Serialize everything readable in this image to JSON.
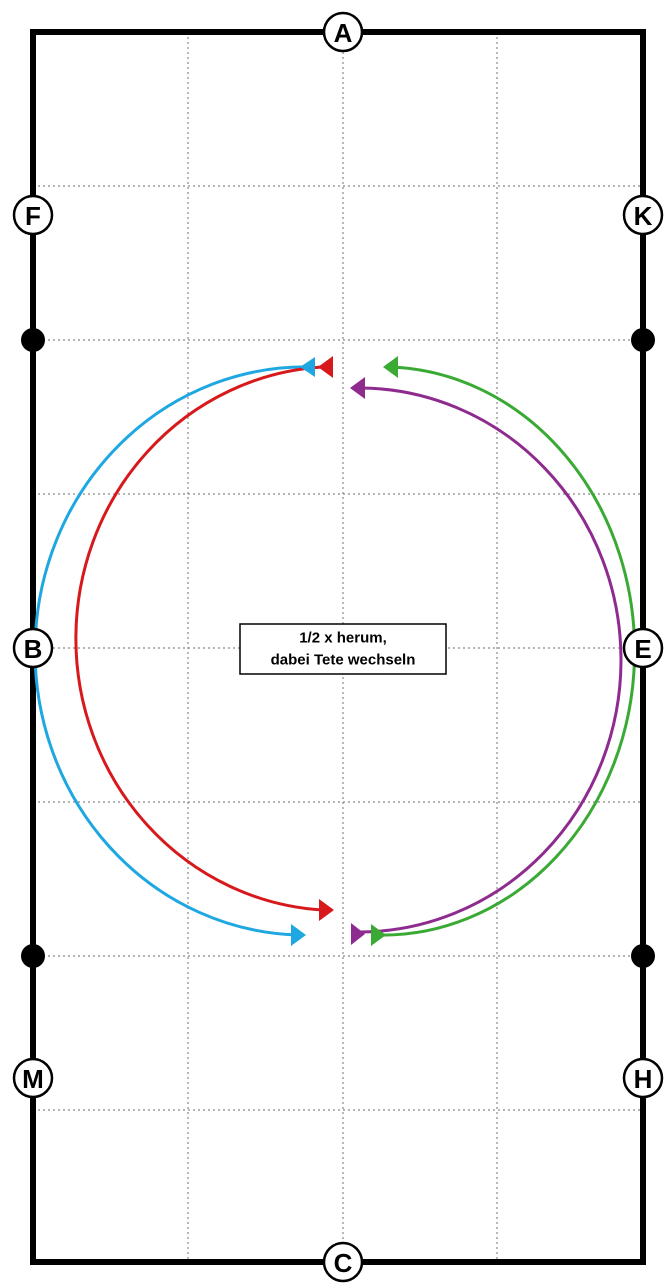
{
  "markers": {
    "A": "A",
    "C": "C",
    "F": "F",
    "K": "K",
    "B": "B",
    "E": "E",
    "M": "M",
    "H": "H"
  },
  "label": {
    "line1": "1/2 x herum,",
    "line2": "dabei Tete wechseln"
  }
}
